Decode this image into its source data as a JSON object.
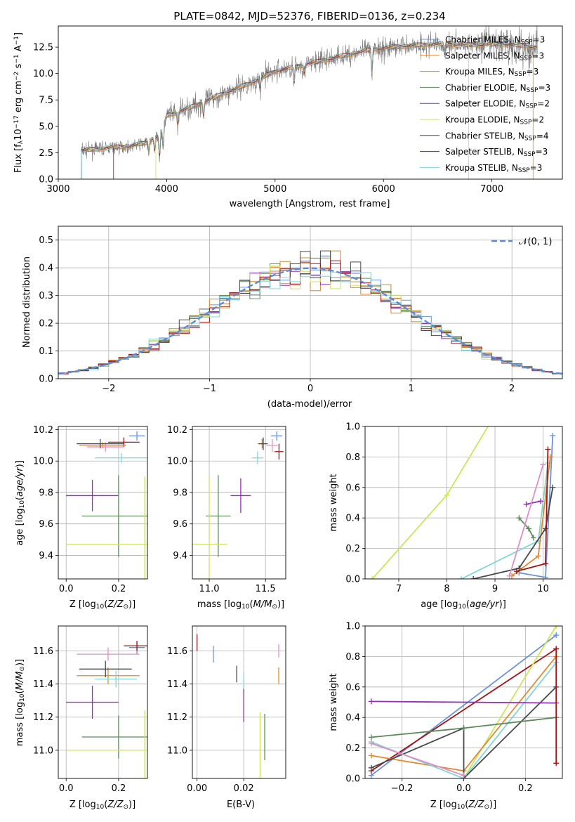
{
  "colors": {
    "chabrier_miles": "#6a93d9",
    "salpeter_miles": "#e3892e",
    "kroupa_miles": "#d08a2b",
    "chabrier_elodie": "#5b8a5b",
    "salpeter_elodie": "#8e2fb5",
    "kroupa_elodie": "#cfe35a",
    "chabrier_stelib": "#4a4a4a",
    "salpeter_stelib": "#a31515",
    "kroupa_stelib": "#7fd6d6",
    "pink": "#e08ec8",
    "normal": "#5b8ad9",
    "spectrum_gray": "#7a7a7a"
  },
  "chart_data": [
    {
      "id": "spectrum",
      "type": "line",
      "title": "PLATE=0842, MJD=52376, FIBERID=0136, z=0.234",
      "xlabel": "wavelength [Angstrom, rest frame]",
      "ylabel_parts": [
        "Flux [f",
        "λ",
        "10",
        "−17",
        " erg cm",
        "−2",
        " s",
        "−1",
        " A",
        "−1",
        "]"
      ],
      "xlim": [
        3000,
        7650
      ],
      "ylim": [
        0,
        14.5
      ],
      "xticks": [
        3000,
        4000,
        5000,
        6000,
        7000
      ],
      "yticks": [
        0.0,
        2.5,
        5.0,
        7.5,
        10.0,
        12.5
      ],
      "legend_position": "upper right",
      "legend": [
        {
          "label": "Chabrier MILES, N",
          "sub": "SSP",
          "tail": "=3",
          "color_key": "chabrier_miles"
        },
        {
          "label": "Salpeter MILES, N",
          "sub": "SSP",
          "tail": "=3",
          "color_key": "salpeter_miles"
        },
        {
          "label": "Kroupa MILES, N",
          "sub": "SSP",
          "tail": "=3",
          "color_key": "kroupa_miles"
        },
        {
          "label": "Chabrier ELODIE, N",
          "sub": "SSP",
          "tail": "=3",
          "color_key": "chabrier_elodie"
        },
        {
          "label": "Salpeter ELODIE, N",
          "sub": "SSP",
          "tail": "=2",
          "color_key": "salpeter_elodie"
        },
        {
          "label": "Kroupa ELODIE, N",
          "sub": "SSP",
          "tail": "=2",
          "color_key": "kroupa_elodie"
        },
        {
          "label": "Chabrier STELIB, N",
          "sub": "SSP",
          "tail": "=4",
          "color_key": "chabrier_stelib"
        },
        {
          "label": "Salpeter STELIB, N",
          "sub": "SSP",
          "tail": "=3",
          "color_key": "salpeter_stelib"
        },
        {
          "label": "Kroupa STELIB, N",
          "sub": "SSP",
          "tail": "=3",
          "color_key": "kroupa_stelib"
        }
      ],
      "continuum": [
        [
          3210,
          2.7
        ],
        [
          3500,
          3.0
        ],
        [
          3650,
          3.1
        ],
        [
          3800,
          3.4
        ],
        [
          3950,
          4.3
        ],
        [
          4000,
          6.0
        ],
        [
          4200,
          6.7
        ],
        [
          4500,
          8.0
        ],
        [
          4800,
          9.2
        ],
        [
          5000,
          10.2
        ],
        [
          5300,
          10.9
        ],
        [
          5600,
          11.6
        ],
        [
          5900,
          12.3
        ],
        [
          6200,
          12.6
        ],
        [
          6500,
          12.8
        ],
        [
          6800,
          12.7
        ],
        [
          7100,
          12.8
        ],
        [
          7400,
          12.5
        ]
      ]
    },
    {
      "id": "residuals",
      "type": "histogram",
      "xlabel": "(data-model)/error",
      "ylabel": "Normed distribution",
      "xlim": [
        -2.5,
        2.5
      ],
      "ylim": [
        0,
        0.55
      ],
      "xticks": [
        -2,
        -1,
        0,
        1,
        2
      ],
      "ytick_labels": [
        "0.0",
        "0.1",
        "0.2",
        "0.3",
        "0.4",
        "0.5"
      ],
      "yticks": [
        0,
        0.1,
        0.2,
        0.3,
        0.4,
        0.5
      ],
      "bin_width": 0.1,
      "legend_position": "upper right",
      "legend_label": "𝒩(0, 1)",
      "grid": true
    },
    {
      "id": "age_vs_Z",
      "type": "scatter",
      "xlabel": "Z [log10(Z/Z⊙)]",
      "ylabel": "age  [log10(age/yr)]",
      "xlim": [
        -0.03,
        0.31
      ],
      "ylim": [
        9.25,
        10.22
      ],
      "xticks": [
        0.0,
        0.2
      ],
      "xtick_labels": [
        "0.0",
        "0.2"
      ],
      "yticks": [
        9.4,
        9.6,
        9.8,
        10.0,
        10.2
      ],
      "ytick_labels": [
        "9.4",
        "9.6",
        "9.8",
        "10.0",
        "10.2"
      ],
      "grid": true,
      "points": [
        {
          "x": 0.27,
          "y": 10.16,
          "xerr": 0.03,
          "yerr": 0.03,
          "color_key": "chabrier_miles"
        },
        {
          "x": 0.22,
          "y": 10.12,
          "xerr": 0.06,
          "yerr": 0.03,
          "color_key": "salpeter_stelib"
        },
        {
          "x": 0.14,
          "y": 10.1,
          "xerr": 0.09,
          "yerr": 0.02,
          "color_key": "salpeter_miles"
        },
        {
          "x": 0.15,
          "y": 10.09,
          "xerr": 0.07,
          "yerr": 0.03,
          "color_key": "pink"
        },
        {
          "x": 0.13,
          "y": 10.11,
          "xerr": 0.09,
          "yerr": 0.03,
          "color_key": "chabrier_stelib"
        },
        {
          "x": 0.21,
          "y": 10.02,
          "xerr": 0.1,
          "yerr": 0.03,
          "color_key": "kroupa_stelib"
        },
        {
          "x": 0.1,
          "y": 9.78,
          "xerr": 0.1,
          "yerr": 0.1,
          "color_key": "salpeter_elodie"
        },
        {
          "x": 0.2,
          "y": 9.65,
          "xerr": 0.14,
          "yerr": 0.26,
          "color_key": "chabrier_elodie"
        },
        {
          "x": 0.3,
          "y": 9.47,
          "xerr": 0.3,
          "yerr": 0.43,
          "color_key": "kroupa_elodie"
        }
      ]
    },
    {
      "id": "age_vs_mass",
      "type": "scatter",
      "xlabel": "mass [log10(M/M⊙)]",
      "xlim": [
        10.85,
        11.68
      ],
      "ylim": [
        9.25,
        10.22
      ],
      "xticks": [
        11.0,
        11.5
      ],
      "xtick_labels": [
        "11.0",
        "11.5"
      ],
      "yticks": [
        9.4,
        9.6,
        9.8,
        10.0,
        10.2
      ],
      "ytick_labels": [
        "9.4",
        "9.6",
        "9.8",
        "10.0",
        "10.2"
      ],
      "grid": true,
      "points": [
        {
          "x": 11.6,
          "y": 10.16,
          "xerr": 0.05,
          "yerr": 0.03,
          "color_key": "chabrier_miles"
        },
        {
          "x": 11.62,
          "y": 10.06,
          "xerr": 0.04,
          "yerr": 0.05,
          "color_key": "salpeter_stelib"
        },
        {
          "x": 11.47,
          "y": 10.11,
          "xerr": 0.04,
          "yerr": 0.03,
          "color_key": "salpeter_miles"
        },
        {
          "x": 11.56,
          "y": 10.1,
          "xerr": 0.05,
          "yerr": 0.04,
          "color_key": "pink"
        },
        {
          "x": 11.48,
          "y": 10.11,
          "xerr": 0.04,
          "yerr": 0.04,
          "color_key": "chabrier_stelib"
        },
        {
          "x": 11.43,
          "y": 10.02,
          "xerr": 0.05,
          "yerr": 0.04,
          "color_key": "kroupa_stelib"
        },
        {
          "x": 11.28,
          "y": 9.78,
          "xerr": 0.09,
          "yerr": 0.11,
          "color_key": "salpeter_elodie"
        },
        {
          "x": 11.08,
          "y": 9.65,
          "xerr": 0.11,
          "yerr": 0.26,
          "color_key": "chabrier_elodie"
        },
        {
          "x": 11.0,
          "y": 9.47,
          "xerr": 0.16,
          "yerr": 0.43,
          "color_key": "kroupa_elodie"
        }
      ]
    },
    {
      "id": "weight_vs_age",
      "type": "line",
      "xlabel": "age  [log10(age/yr)]",
      "ylabel": "mass weight",
      "xlim": [
        6.3,
        10.4
      ],
      "ylim": [
        0,
        1.0
      ],
      "xticks": [
        7,
        8,
        9,
        10
      ],
      "yticks": [
        0,
        0.2,
        0.4,
        0.6,
        0.8,
        1.0
      ],
      "ytick_labels": [
        "0.0",
        "0.2",
        "0.4",
        "0.6",
        "0.8",
        "1.0"
      ],
      "grid": true,
      "series": [
        {
          "color_key": "kroupa_elodie",
          "points": [
            [
              6.45,
              0.0
            ],
            [
              8.0,
              0.55
            ],
            [
              8.95,
              1.05
            ]
          ]
        },
        {
          "color_key": "kroupa_stelib",
          "points": [
            [
              8.3,
              0.0
            ],
            [
              9.9,
              0.25
            ],
            [
              10.1,
              0.76
            ]
          ]
        },
        {
          "color_key": "chabrier_miles",
          "points": [
            [
              9.5,
              0.04
            ],
            [
              10.05,
              0.01
            ],
            [
              10.2,
              0.94
            ]
          ]
        },
        {
          "color_key": "salpeter_miles",
          "points": [
            [
              9.35,
              0.02
            ],
            [
              9.9,
              0.15
            ],
            [
              10.15,
              0.8
            ]
          ]
        },
        {
          "color_key": "chabrier_stelib",
          "points": [
            [
              8.55,
              0.0
            ],
            [
              9.5,
              0.07
            ],
            [
              10.05,
              0.33
            ],
            [
              10.2,
              0.6
            ]
          ]
        },
        {
          "color_key": "salpeter_stelib",
          "points": [
            [
              9.45,
              0.05
            ],
            [
              10.05,
              0.1
            ],
            [
              10.1,
              0.85
            ]
          ]
        },
        {
          "color_key": "chabrier_elodie",
          "points": [
            [
              9.5,
              0.4
            ],
            [
              9.7,
              0.33
            ],
            [
              9.8,
              0.27
            ]
          ]
        },
        {
          "color_key": "salpeter_elodie",
          "points": [
            [
              9.65,
              0.49
            ],
            [
              9.95,
              0.51
            ]
          ]
        },
        {
          "color_key": "pink",
          "points": [
            [
              9.3,
              0.02
            ],
            [
              10.0,
              0.75
            ]
          ]
        }
      ]
    },
    {
      "id": "mass_vs_Z",
      "type": "scatter",
      "xlabel": "Z [log10(Z/Z⊙)]",
      "ylabel": "mass [log10(M/M⊙)]",
      "xlim": [
        -0.03,
        0.31
      ],
      "ylim": [
        10.83,
        11.75
      ],
      "xticks": [
        0.0,
        0.2
      ],
      "xtick_labels": [
        "0.0",
        "0.2"
      ],
      "yticks": [
        11.0,
        11.2,
        11.4,
        11.6
      ],
      "ytick_labels": [
        "11.0",
        "11.2",
        "11.4",
        "11.6"
      ],
      "grid": true,
      "points": [
        {
          "x": 0.27,
          "y": 11.62,
          "xerr": 0.03,
          "yerr": 0.04,
          "color_key": "chabrier_miles"
        },
        {
          "x": 0.27,
          "y": 11.63,
          "xerr": 0.05,
          "yerr": 0.03,
          "color_key": "salpeter_stelib"
        },
        {
          "x": 0.16,
          "y": 11.58,
          "xerr": 0.12,
          "yerr": 0.04,
          "color_key": "pink"
        },
        {
          "x": 0.16,
          "y": 11.45,
          "xerr": 0.12,
          "yerr": 0.05,
          "color_key": "salpeter_miles"
        },
        {
          "x": 0.15,
          "y": 11.49,
          "xerr": 0.1,
          "yerr": 0.05,
          "color_key": "chabrier_stelib"
        },
        {
          "x": 0.19,
          "y": 11.43,
          "xerr": 0.08,
          "yerr": 0.05,
          "color_key": "kroupa_stelib"
        },
        {
          "x": 0.1,
          "y": 11.29,
          "xerr": 0.1,
          "yerr": 0.1,
          "color_key": "salpeter_elodie"
        },
        {
          "x": 0.2,
          "y": 11.08,
          "xerr": 0.14,
          "yerr": 0.13,
          "color_key": "chabrier_elodie"
        },
        {
          "x": 0.3,
          "y": 11.0,
          "xerr": 0.3,
          "yerr": 0.24,
          "color_key": "kroupa_elodie"
        }
      ]
    },
    {
      "id": "mass_vs_ebv",
      "type": "scatter",
      "xlabel": "E(B-V)",
      "xlim": [
        -0.002,
        0.038
      ],
      "ylim": [
        10.83,
        11.75
      ],
      "xticks": [
        0.0,
        0.02
      ],
      "xtick_labels": [
        "0.00",
        "0.02"
      ],
      "yticks": [
        11.0,
        11.2,
        11.4,
        11.6
      ],
      "ytick_labels": [
        "11.0",
        "11.2",
        "11.4",
        "11.6"
      ],
      "grid": true,
      "points": [
        {
          "x": 0.0,
          "y": 11.65,
          "yerr": 0.05,
          "color_key": "salpeter_stelib"
        },
        {
          "x": 0.007,
          "y": 11.58,
          "yerr": 0.05,
          "color_key": "chabrier_miles"
        },
        {
          "x": 0.017,
          "y": 11.46,
          "yerr": 0.05,
          "color_key": "chabrier_stelib"
        },
        {
          "x": 0.02,
          "y": 11.41,
          "yerr": 0.06,
          "color_key": "kroupa_stelib"
        },
        {
          "x": 0.02,
          "y": 11.27,
          "yerr": 0.1,
          "color_key": "salpeter_elodie"
        },
        {
          "x": 0.027,
          "y": 11.0,
          "yerr": 0.23,
          "color_key": "kroupa_elodie"
        },
        {
          "x": 0.029,
          "y": 11.08,
          "yerr": 0.14,
          "color_key": "chabrier_elodie"
        },
        {
          "x": 0.035,
          "y": 11.6,
          "yerr": 0.04,
          "color_key": "pink"
        },
        {
          "x": 0.035,
          "y": 11.45,
          "yerr": 0.05,
          "color_key": "salpeter_miles"
        }
      ]
    },
    {
      "id": "weight_vs_Z",
      "type": "line",
      "xlabel": "Z [log10(Z/Z⊙)]",
      "ylabel": "mass weight",
      "xlim": [
        -0.32,
        0.32
      ],
      "ylim": [
        0,
        1.0
      ],
      "xticks": [
        -0.2,
        0.0,
        0.2
      ],
      "xtick_labels": [
        "−0.2",
        "0.0",
        "0.2"
      ],
      "yticks": [
        0,
        0.2,
        0.4,
        0.6,
        0.8,
        1.0
      ],
      "ytick_labels": [
        "0.0",
        "0.2",
        "0.4",
        "0.6",
        "0.8",
        "1.0"
      ],
      "grid": true,
      "series": [
        {
          "color_key": "chabrier_miles",
          "points": [
            [
              -0.3,
              0.02
            ],
            [
              0.3,
              0.94
            ]
          ]
        },
        {
          "color_key": "salpeter_stelib",
          "points": [
            [
              -0.3,
              0.05
            ],
            [
              0.3,
              0.85
            ]
          ]
        },
        {
          "color_key": "kroupa_elodie",
          "points": [
            [
              0.0,
              0.0
            ],
            [
              0.3,
              1.0
            ]
          ]
        },
        {
          "color_key": "salpeter_miles",
          "points": [
            [
              -0.3,
              0.15
            ],
            [
              0.0,
              0.05
            ],
            [
              0.3,
              0.8
            ]
          ]
        },
        {
          "color_key": "kroupa_stelib",
          "points": [
            [
              -0.3,
              0.24
            ],
            [
              0.0,
              0.0
            ],
            [
              0.3,
              0.76
            ]
          ]
        },
        {
          "color_key": "chabrier_stelib",
          "points": [
            [
              -0.3,
              0.07
            ],
            [
              0.0,
              0.33
            ],
            [
              0.0,
              0.0
            ],
            [
              0.3,
              0.6
            ]
          ]
        },
        {
          "color_key": "salpeter_elodie",
          "points": [
            [
              -0.3,
              0.505
            ],
            [
              0.3,
              0.495
            ]
          ]
        },
        {
          "color_key": "chabrier_elodie",
          "points": [
            [
              -0.3,
              0.27
            ],
            [
              0.0,
              0.33
            ],
            [
              0.3,
              0.4
            ]
          ]
        },
        {
          "color_key": "pink",
          "points": [
            [
              -0.3,
              0.23
            ],
            [
              0.0,
              0.02
            ]
          ]
        },
        {
          "color_key": "salpeter_stelib",
          "points": [
            [
              0.3,
              0.1
            ],
            [
              0.3,
              0.85
            ]
          ]
        }
      ]
    }
  ]
}
